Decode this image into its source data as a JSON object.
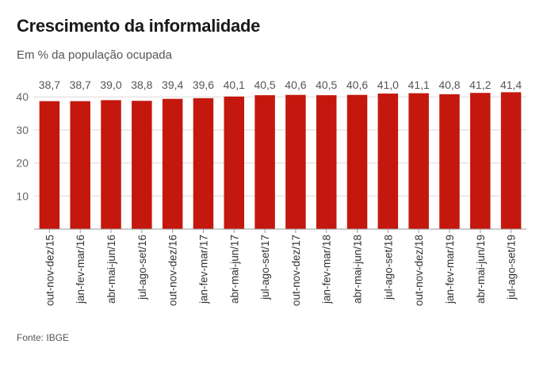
{
  "title": "Crescimento da informalidade",
  "subtitle": "Em % da população ocupada",
  "source": "Fonte: IBGE",
  "colors": {
    "bar": "#c4180e",
    "grid": "#d9d9d9",
    "axis": "#999999"
  },
  "chart_data": {
    "type": "bar",
    "categories": [
      "out-nov-dez/15",
      "jan-fev-mar/16",
      "abr-mai-jun/16",
      "jul-ago-set/16",
      "out-nov-dez/16",
      "jan-fev-mar/17",
      "abr-mai-jun/17",
      "jul-ago-set/17",
      "out-nov-dez/17",
      "jan-fev-mar/18",
      "abr-mai-jun/18",
      "jul-ago-set/18",
      "out-nov-dez/18",
      "jan-fev-mar/19",
      "abr-mai-jun/19",
      "jul-ago-set/19"
    ],
    "values": [
      38.7,
      38.7,
      39.0,
      38.8,
      39.4,
      39.6,
      40.1,
      40.5,
      40.6,
      40.5,
      40.6,
      41.0,
      41.1,
      40.8,
      41.2,
      41.4
    ],
    "data_labels": [
      "38,7",
      "38,7",
      "39,0",
      "38,8",
      "39,4",
      "39,6",
      "40,1",
      "40,5",
      "40,6",
      "40,5",
      "40,6",
      "41,0",
      "41,1",
      "40,8",
      "41,2",
      "41,4"
    ],
    "yticks": [
      10,
      20,
      30,
      40
    ],
    "ylim": [
      0,
      45
    ],
    "grid": true,
    "xlabel": "",
    "ylabel": ""
  }
}
